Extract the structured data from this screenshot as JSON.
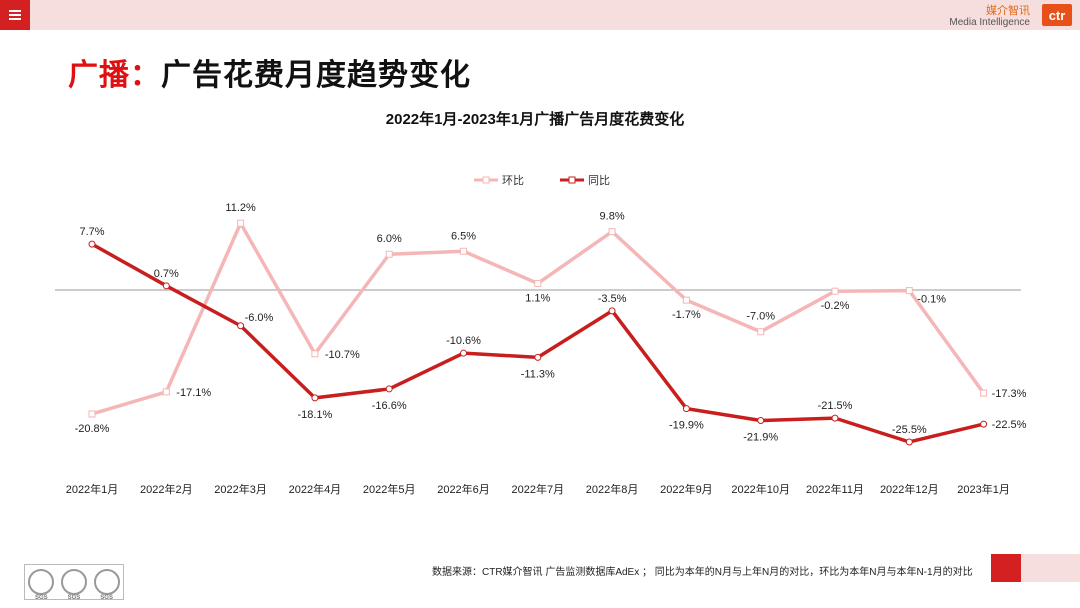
{
  "header": {
    "logo_cn": "媒介智讯",
    "logo_en": "Media Intelligence",
    "logo_mark": "ctr"
  },
  "page_title": {
    "prefix": "广播：",
    "main": "广告花费月度趋势变化"
  },
  "chart_data": {
    "type": "line",
    "title": "2022年1月-2023年1月广播广告月度花费变化",
    "categories": [
      "2022年1月",
      "2022年2月",
      "2022年3月",
      "2022年4月",
      "2022年5月",
      "2022年6月",
      "2022年7月",
      "2022年8月",
      "2022年9月",
      "2022年10月",
      "2022年11月",
      "2022年12月",
      "2023年1月"
    ],
    "series": [
      {
        "name": "环比",
        "color": "#f4b6b6",
        "values": [
          -20.8,
          -17.1,
          11.2,
          -10.7,
          6.0,
          6.5,
          1.1,
          9.8,
          -1.7,
          -7.0,
          -0.2,
          -0.1,
          -17.3
        ],
        "labels": [
          "-20.8%",
          "-17.1%",
          "11.2%",
          "-10.7%",
          "6.0%",
          "6.5%",
          "1.1%",
          "9.8%",
          "-1.7%",
          "-7.0%",
          "-0.2%",
          "-0.1%",
          "-17.3%"
        ]
      },
      {
        "name": "同比",
        "color": "#c81e1e",
        "values": [
          7.7,
          0.7,
          -6.0,
          -18.1,
          -16.6,
          -10.6,
          -11.3,
          -3.5,
          -19.9,
          -21.9,
          -21.5,
          -25.5,
          -22.5
        ],
        "labels": [
          "7.7%",
          "0.7%",
          "-6.0%",
          "-18.1%",
          "-16.6%",
          "-10.6%",
          "-11.3%",
          "-3.5%",
          "-19.9%",
          "-21.9%",
          "-21.5%",
          "-25.5%",
          "-22.5%"
        ]
      }
    ],
    "ylim": [
      -28,
      14
    ],
    "legend_position": "top-center",
    "zero_line": true
  },
  "footer": {
    "note": "数据来源：CTR媒介智讯 广告监测数据库AdEx ；  同比为本年的N月与上年N月的对比，环比为本年N月与本年N-1月的对比",
    "cert_label": "SGS"
  }
}
